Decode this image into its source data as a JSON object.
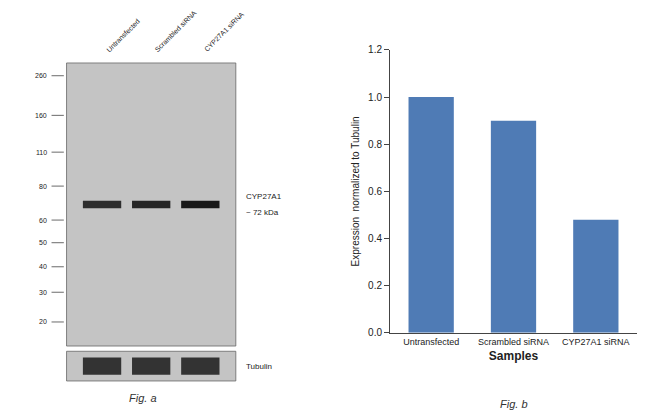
{
  "chart_data": {
    "type": "bar",
    "xlabel": "Samples",
    "ylabel": "Expression  normalized to Tubulin",
    "categories": [
      "Untransfected",
      "Scrambled siRNA",
      "CYP27A1 siRNA"
    ],
    "values": [
      1.0,
      0.9,
      0.48
    ],
    "color": "#4f7bb5",
    "ylim": [
      0,
      1.2
    ],
    "yticks": [
      {
        "value": 0,
        "label": "0.0"
      },
      0.2,
      0.4,
      0.6,
      0.8,
      {
        "value": 1.0,
        "label": "1.0"
      },
      1.2
    ],
    "grid": false,
    "annotations": [
      "Fig. a",
      "Fig. b",
      "CYP27A1",
      "~ 72 kDa",
      "Tubulin",
      "260",
      "160",
      "110",
      "80",
      "60",
      "50",
      "40",
      "30",
      "20"
    ]
  }
}
